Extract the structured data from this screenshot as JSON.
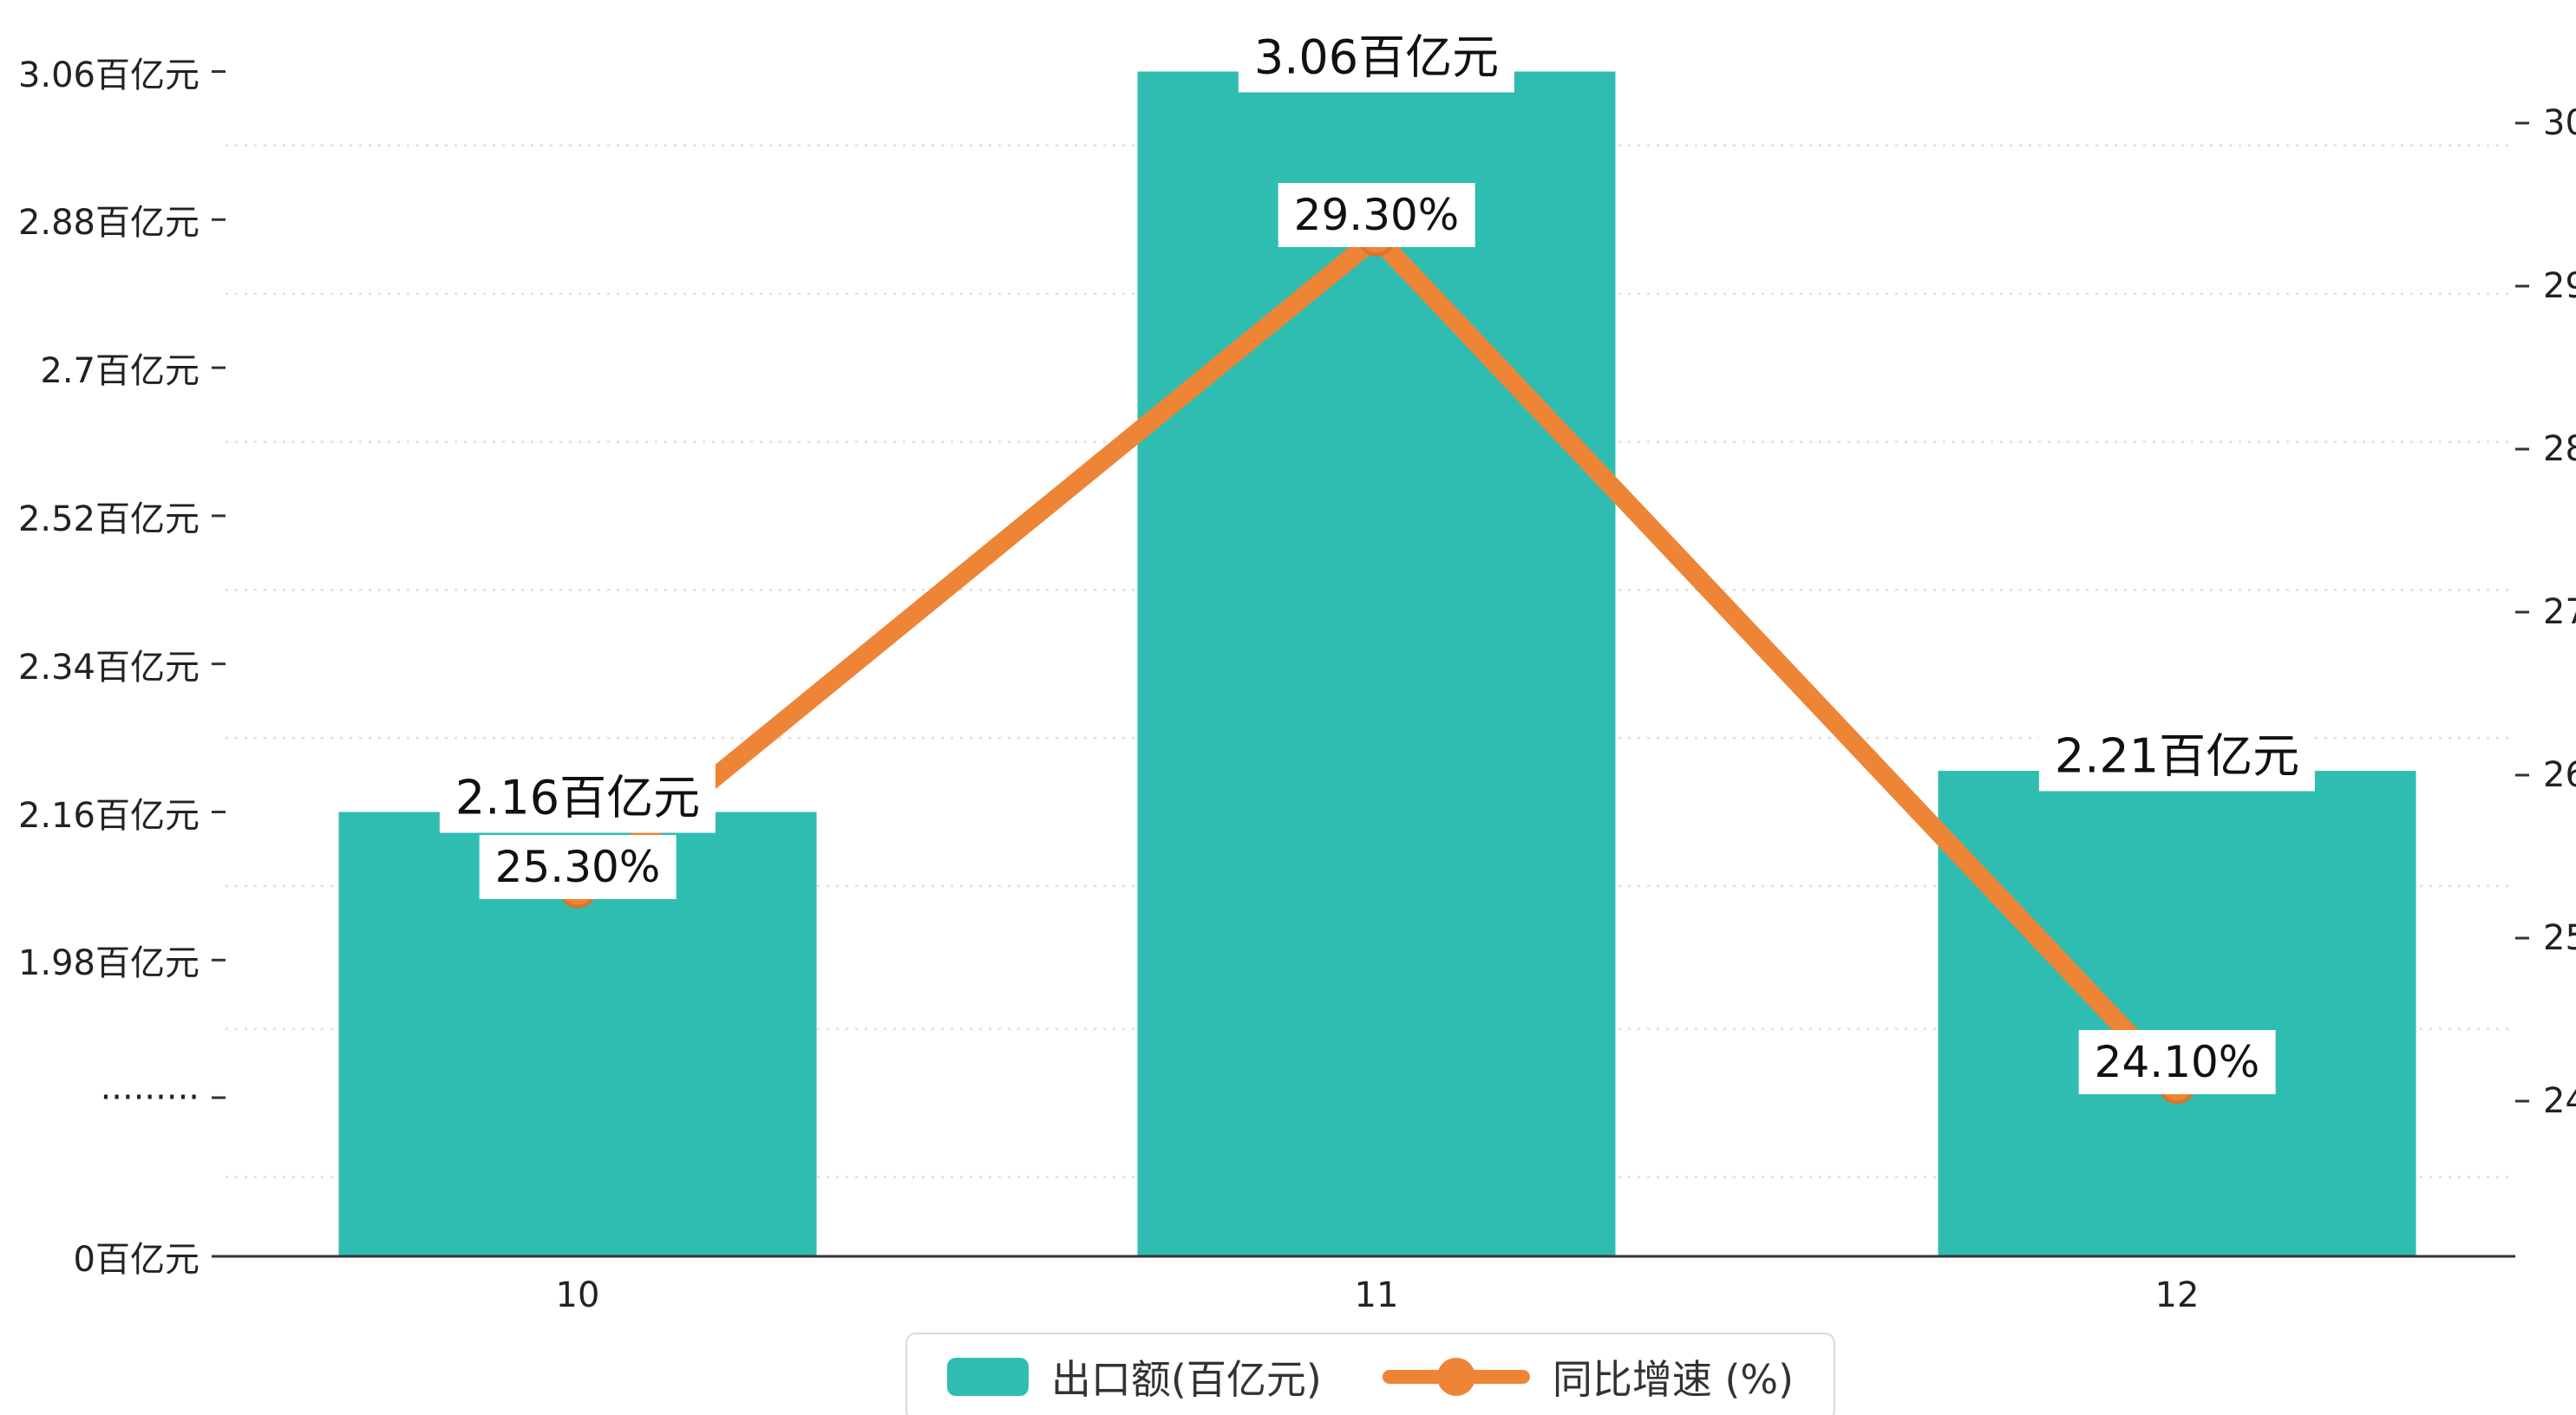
{
  "chart_data": {
    "type": "bar",
    "title": "",
    "categories": [
      "10",
      "11",
      "12"
    ],
    "series": [
      {
        "name": "出口额(百亿元)",
        "type": "bar",
        "values": [
          2.16,
          3.06,
          2.21
        ],
        "value_labels": [
          "2.16百亿元",
          "3.06百亿元",
          "2.21百亿元"
        ],
        "color": "#2fbdb1"
      },
      {
        "name": "同比增速 (%)",
        "type": "line",
        "values": [
          25.3,
          29.3,
          24.1
        ],
        "value_labels": [
          "25.30%",
          "29.30%",
          "24.10%"
        ],
        "color": "#ee8435"
      }
    ],
    "left_axis": {
      "axis_break": true,
      "ticks": [
        {
          "value": 3.06,
          "label": "3.06百亿元"
        },
        {
          "value": 2.88,
          "label": "2.88百亿元"
        },
        {
          "value": 2.7,
          "label": "2.7百亿元"
        },
        {
          "value": 2.52,
          "label": "2.52百亿元"
        },
        {
          "value": 2.34,
          "label": "2.34百亿元"
        },
        {
          "value": 2.16,
          "label": "2.16百亿元"
        },
        {
          "value": 1.98,
          "label": "1.98百亿元"
        },
        {
          "value": null,
          "label": "·········"
        },
        {
          "value": 0,
          "label": "0百亿元"
        }
      ]
    },
    "right_axis": {
      "min": 24,
      "max": 30,
      "ticks": [
        30,
        29,
        28,
        27,
        26,
        25,
        24
      ]
    },
    "legend": [
      {
        "label": "出口额(百亿元)",
        "marker": "bar",
        "color": "#2fbdb1"
      },
      {
        "label": "同比增速 (%)",
        "marker": "line",
        "color": "#ee8435"
      }
    ],
    "grid": "dashed horizontal"
  }
}
